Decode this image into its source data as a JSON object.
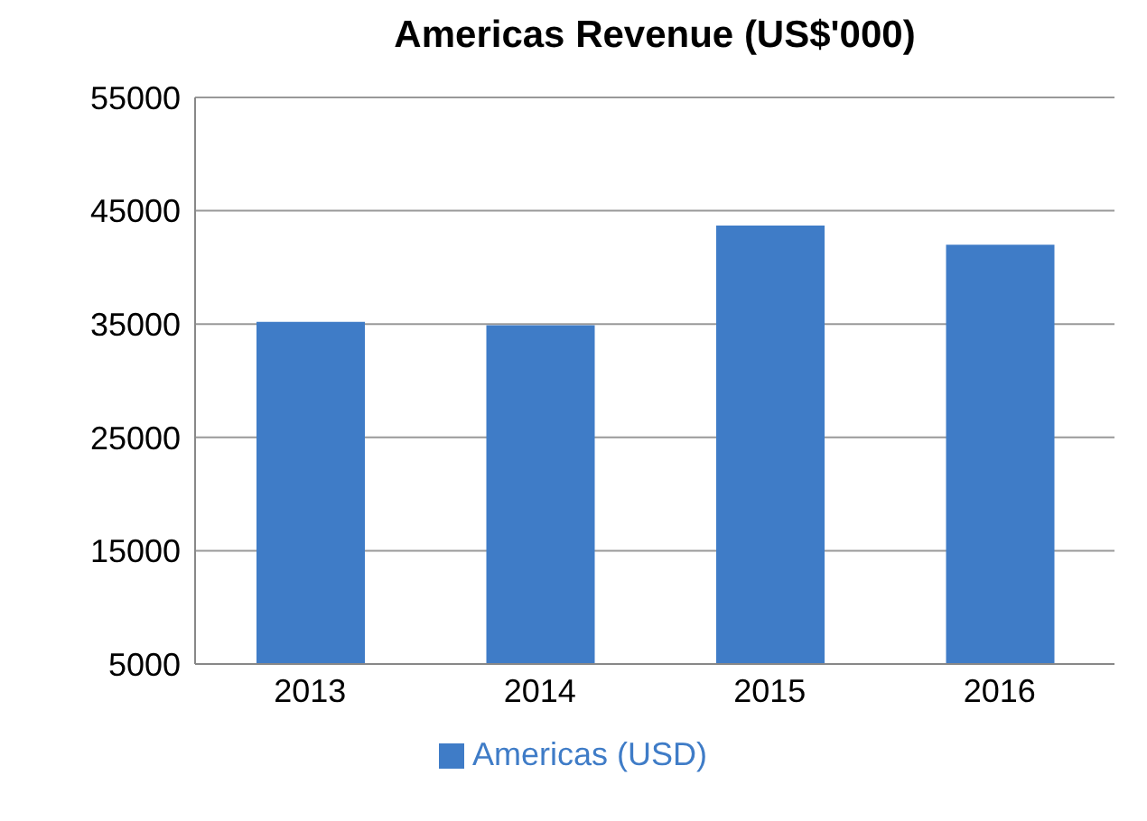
{
  "chart_data": {
    "type": "bar",
    "title": "Americas Revenue (US$'000)",
    "categories": [
      "2013",
      "2014",
      "2015",
      "2016"
    ],
    "series": [
      {
        "name": "Americas (USD)",
        "color": "#3f7cc7",
        "values": [
          35200,
          34900,
          43700,
          42000
        ]
      }
    ],
    "ylim": [
      5000,
      55000
    ],
    "yticks": [
      5000,
      15000,
      25000,
      35000,
      45000,
      55000
    ],
    "grid": "y",
    "legend": "bottom"
  }
}
